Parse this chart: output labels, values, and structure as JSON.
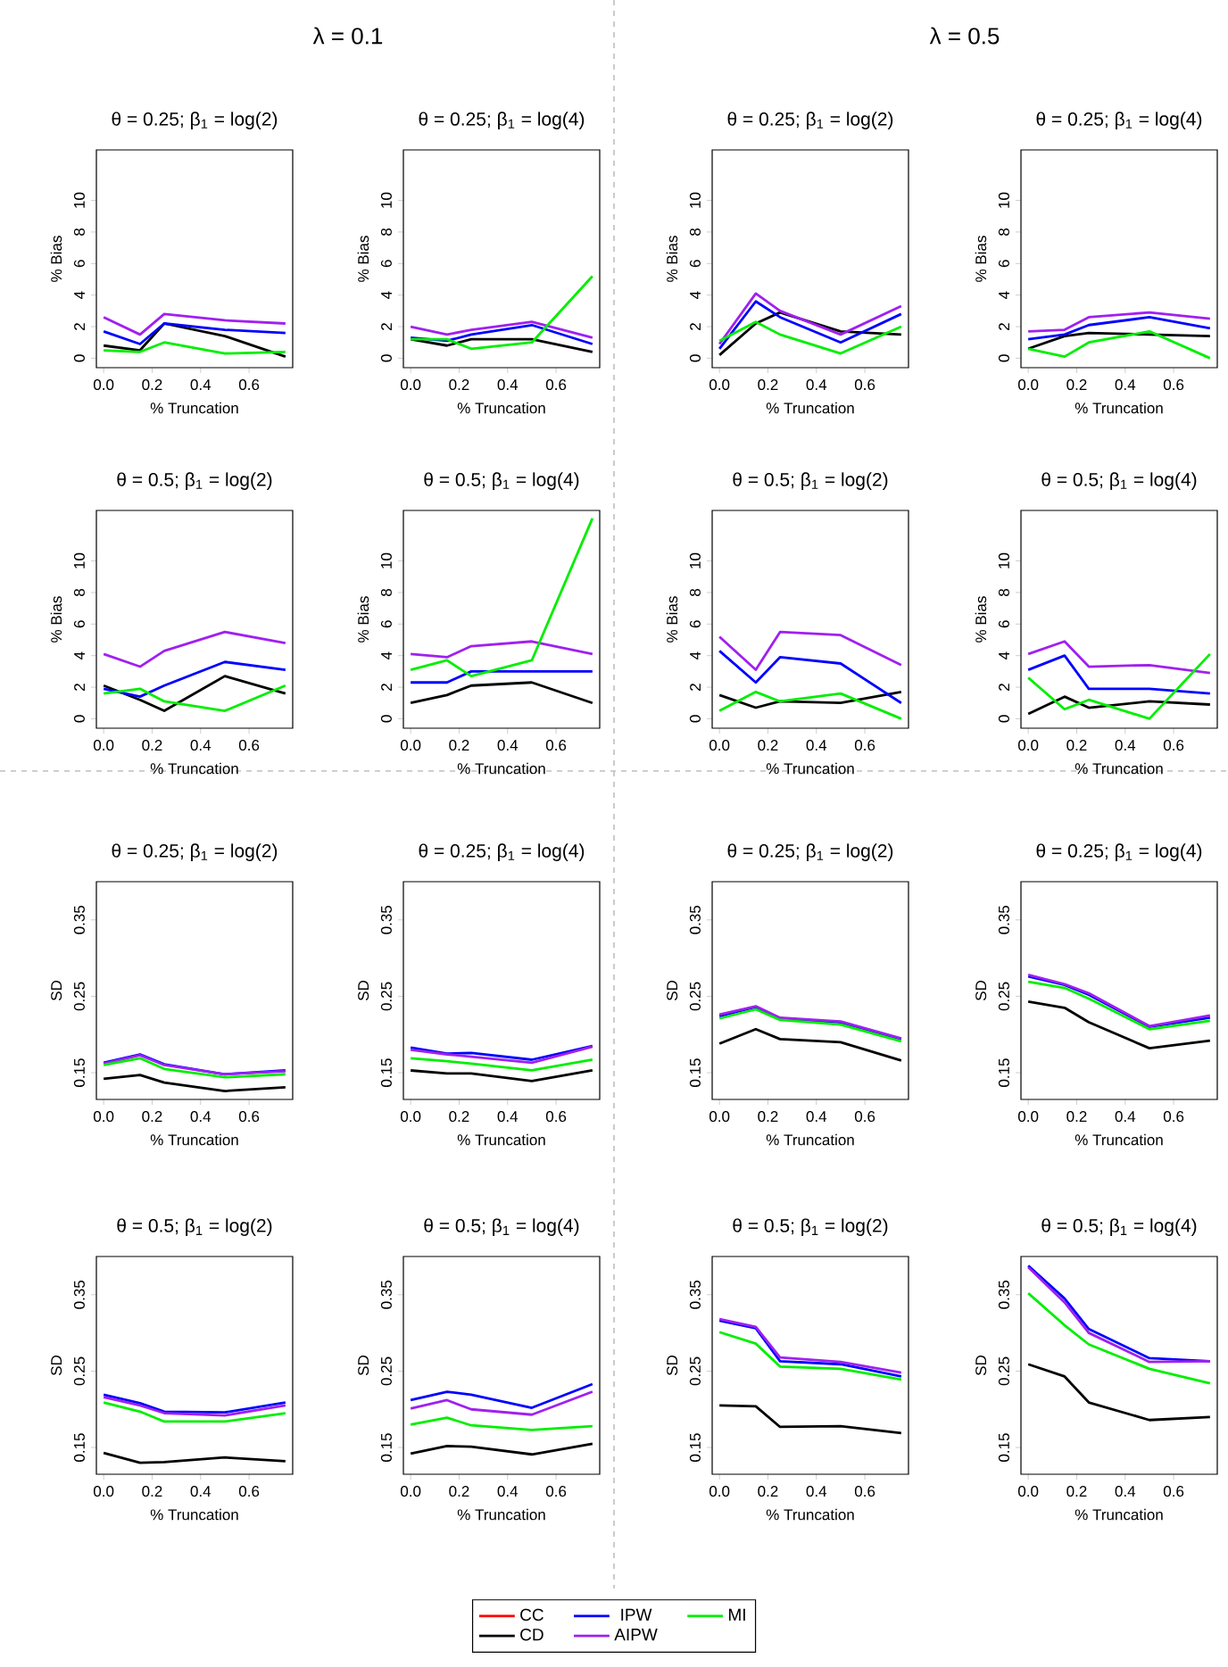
{
  "chart_data": [
    {
      "type": "line",
      "title": "θ = 0.25; β$_{1}$ = log(2)",
      "xlabel": "% Truncation",
      "ylabel": "% Bias",
      "annotations": [
        "λ = 0.1"
      ],
      "x": [
        0,
        0.15,
        0.25,
        0.5,
        0.75
      ],
      "xlim": [
        -0.03,
        0.78
      ],
      "ylim": [
        -0.6,
        13.2
      ],
      "xticks": [
        {
          "value": 0,
          "label": "0.0"
        },
        {
          "value": 0.2,
          "label": "0.2"
        },
        {
          "value": 0.4,
          "label": "0.4"
        },
        {
          "value": 0.6,
          "label": "0.6"
        }
      ],
      "yticks": [
        0,
        2,
        4,
        6,
        8,
        10
      ],
      "series": [
        {
          "color": "#000000",
          "values": [
            0.8,
            0.5,
            2.2,
            1.4,
            0.1
          ]
        },
        {
          "color": "#0000ff",
          "values": [
            1.7,
            0.9,
            2.2,
            1.8,
            1.6
          ]
        },
        {
          "color": "#a020f0",
          "values": [
            2.6,
            1.5,
            2.8,
            2.4,
            2.2
          ]
        },
        {
          "color": "#00ee00",
          "values": [
            0.5,
            0.4,
            1.0,
            0.3,
            0.4
          ]
        }
      ]
    },
    {
      "type": "line",
      "title": "θ = 0.25; β$_{1}$ = log(4)",
      "xlabel": "% Truncation",
      "ylabel": "% Bias",
      "x": [
        0,
        0.15,
        0.25,
        0.5,
        0.75
      ],
      "xlim": [
        -0.03,
        0.78
      ],
      "ylim": [
        -0.6,
        13.2
      ],
      "xticks": [
        {
          "value": 0,
          "label": "0.0"
        },
        {
          "value": 0.2,
          "label": "0.2"
        },
        {
          "value": 0.4,
          "label": "0.4"
        },
        {
          "value": 0.6,
          "label": "0.6"
        }
      ],
      "yticks": [
        0,
        2,
        4,
        6,
        8,
        10
      ],
      "series": [
        {
          "color": "#000000",
          "values": [
            1.2,
            0.8,
            1.2,
            1.2,
            0.4
          ]
        },
        {
          "color": "#0000ff",
          "values": [
            1.3,
            1.1,
            1.5,
            2.1,
            0.9
          ]
        },
        {
          "color": "#a020f0",
          "values": [
            2.0,
            1.5,
            1.8,
            2.3,
            1.3
          ]
        },
        {
          "color": "#00ee00",
          "values": [
            1.2,
            1.2,
            0.6,
            1.0,
            5.2
          ]
        }
      ]
    },
    {
      "type": "line",
      "title": "θ = 0.25; β$_{1}$ = log(2)",
      "xlabel": "% Truncation",
      "ylabel": "% Bias",
      "annotations": [
        "λ = 0.5"
      ],
      "x": [
        0,
        0.15,
        0.25,
        0.5,
        0.75
      ],
      "xlim": [
        -0.03,
        0.78
      ],
      "ylim": [
        -0.6,
        13.2
      ],
      "xticks": [
        {
          "value": 0,
          "label": "0.0"
        },
        {
          "value": 0.2,
          "label": "0.2"
        },
        {
          "value": 0.4,
          "label": "0.4"
        },
        {
          "value": 0.6,
          "label": "0.6"
        }
      ],
      "yticks": [
        0,
        2,
        4,
        6,
        8,
        10
      ],
      "series": [
        {
          "color": "#000000",
          "values": [
            0.2,
            2.2,
            2.9,
            1.7,
            1.5
          ]
        },
        {
          "color": "#0000ff",
          "values": [
            0.6,
            3.6,
            2.6,
            1.0,
            2.8
          ]
        },
        {
          "color": "#a020f0",
          "values": [
            0.9,
            4.1,
            3.0,
            1.5,
            3.3
          ]
        },
        {
          "color": "#00ee00",
          "values": [
            1.1,
            2.3,
            1.5,
            0.3,
            2.0
          ]
        }
      ]
    },
    {
      "type": "line",
      "title": "θ = 0.25; β$_{1}$ = log(4)",
      "xlabel": "% Truncation",
      "ylabel": "% Bias",
      "x": [
        0,
        0.15,
        0.25,
        0.5,
        0.75
      ],
      "xlim": [
        -0.03,
        0.78
      ],
      "ylim": [
        -0.6,
        13.2
      ],
      "xticks": [
        {
          "value": 0,
          "label": "0.0"
        },
        {
          "value": 0.2,
          "label": "0.2"
        },
        {
          "value": 0.4,
          "label": "0.4"
        },
        {
          "value": 0.6,
          "label": "0.6"
        }
      ],
      "yticks": [
        0,
        2,
        4,
        6,
        8,
        10
      ],
      "series": [
        {
          "color": "#000000",
          "values": [
            0.6,
            1.4,
            1.6,
            1.5,
            1.4
          ]
        },
        {
          "color": "#0000ff",
          "values": [
            1.2,
            1.5,
            2.1,
            2.6,
            1.9
          ]
        },
        {
          "color": "#a020f0",
          "values": [
            1.7,
            1.8,
            2.6,
            2.9,
            2.5
          ]
        },
        {
          "color": "#00ee00",
          "values": [
            0.6,
            0.1,
            1.0,
            1.7,
            0.0
          ]
        }
      ]
    },
    {
      "type": "line",
      "title": "θ = 0.5; β$_{1}$ = log(2)",
      "xlabel": "% Truncation",
      "ylabel": "% Bias",
      "x": [
        0,
        0.15,
        0.25,
        0.5,
        0.75
      ],
      "xlim": [
        -0.03,
        0.78
      ],
      "ylim": [
        -0.6,
        13.2
      ],
      "xticks": [
        {
          "value": 0,
          "label": "0.0"
        },
        {
          "value": 0.2,
          "label": "0.2"
        },
        {
          "value": 0.4,
          "label": "0.4"
        },
        {
          "value": 0.6,
          "label": "0.6"
        }
      ],
      "yticks": [
        0,
        2,
        4,
        6,
        8,
        10
      ],
      "series": [
        {
          "color": "#000000",
          "values": [
            2.1,
            1.2,
            0.5,
            2.7,
            1.6
          ]
        },
        {
          "color": "#0000ff",
          "values": [
            1.9,
            1.4,
            2.1,
            3.6,
            3.1
          ]
        },
        {
          "color": "#a020f0",
          "values": [
            4.1,
            3.3,
            4.3,
            5.5,
            4.8
          ]
        },
        {
          "color": "#00ee00",
          "values": [
            1.6,
            1.9,
            1.1,
            0.5,
            2.1
          ]
        }
      ]
    },
    {
      "type": "line",
      "title": "θ = 0.5; β$_{1}$ = log(4)",
      "xlabel": "% Truncation",
      "ylabel": "% Bias",
      "x": [
        0,
        0.15,
        0.25,
        0.5,
        0.75
      ],
      "xlim": [
        -0.03,
        0.78
      ],
      "ylim": [
        -0.6,
        13.2
      ],
      "xticks": [
        {
          "value": 0,
          "label": "0.0"
        },
        {
          "value": 0.2,
          "label": "0.2"
        },
        {
          "value": 0.4,
          "label": "0.4"
        },
        {
          "value": 0.6,
          "label": "0.6"
        }
      ],
      "yticks": [
        0,
        2,
        4,
        6,
        8,
        10
      ],
      "series": [
        {
          "color": "#000000",
          "values": [
            1.0,
            1.5,
            2.1,
            2.3,
            1.0
          ]
        },
        {
          "color": "#0000ff",
          "values": [
            2.3,
            2.3,
            3.0,
            3.0,
            3.0
          ]
        },
        {
          "color": "#a020f0",
          "values": [
            4.1,
            3.9,
            4.6,
            4.9,
            4.1
          ]
        },
        {
          "color": "#00ee00",
          "values": [
            3.1,
            3.7,
            2.7,
            3.7,
            12.7
          ]
        }
      ]
    },
    {
      "type": "line",
      "title": "θ = 0.5; β$_{1}$ = log(2)",
      "xlabel": "% Truncation",
      "ylabel": "% Bias",
      "x": [
        0,
        0.15,
        0.25,
        0.5,
        0.75
      ],
      "xlim": [
        -0.03,
        0.78
      ],
      "ylim": [
        -0.6,
        13.2
      ],
      "xticks": [
        {
          "value": 0,
          "label": "0.0"
        },
        {
          "value": 0.2,
          "label": "0.2"
        },
        {
          "value": 0.4,
          "label": "0.4"
        },
        {
          "value": 0.6,
          "label": "0.6"
        }
      ],
      "yticks": [
        0,
        2,
        4,
        6,
        8,
        10
      ],
      "series": [
        {
          "color": "#000000",
          "values": [
            1.5,
            0.7,
            1.1,
            1.0,
            1.7
          ]
        },
        {
          "color": "#0000ff",
          "values": [
            4.3,
            2.3,
            3.9,
            3.5,
            1.0
          ]
        },
        {
          "color": "#a020f0",
          "values": [
            5.2,
            3.1,
            5.5,
            5.3,
            3.4
          ]
        },
        {
          "color": "#00ee00",
          "values": [
            0.5,
            1.7,
            1.1,
            1.6,
            0.0
          ]
        }
      ]
    },
    {
      "type": "line",
      "title": "θ = 0.5; β$_{1}$ = log(4)",
      "xlabel": "% Truncation",
      "ylabel": "% Bias",
      "x": [
        0,
        0.15,
        0.25,
        0.5,
        0.75
      ],
      "xlim": [
        -0.03,
        0.78
      ],
      "ylim": [
        -0.6,
        13.2
      ],
      "xticks": [
        {
          "value": 0,
          "label": "0.0"
        },
        {
          "value": 0.2,
          "label": "0.2"
        },
        {
          "value": 0.4,
          "label": "0.4"
        },
        {
          "value": 0.6,
          "label": "0.6"
        }
      ],
      "yticks": [
        0,
        2,
        4,
        6,
        8,
        10
      ],
      "series": [
        {
          "color": "#000000",
          "values": [
            0.3,
            1.4,
            0.7,
            1.1,
            0.9
          ]
        },
        {
          "color": "#0000ff",
          "values": [
            3.1,
            4.0,
            1.9,
            1.9,
            1.6
          ]
        },
        {
          "color": "#a020f0",
          "values": [
            4.1,
            4.9,
            3.3,
            3.4,
            2.9
          ]
        },
        {
          "color": "#00ee00",
          "values": [
            2.6,
            0.6,
            1.2,
            0.0,
            4.1
          ]
        }
      ]
    },
    {
      "type": "line",
      "title": "θ = 0.25; β$_{1}$ = log(2)",
      "xlabel": "% Truncation",
      "ylabel": "SD",
      "x": [
        0,
        0.15,
        0.25,
        0.5,
        0.75
      ],
      "xlim": [
        -0.03,
        0.78
      ],
      "ylim": [
        0.115,
        0.4
      ],
      "xticks": [
        {
          "value": 0,
          "label": "0.0"
        },
        {
          "value": 0.2,
          "label": "0.2"
        },
        {
          "value": 0.4,
          "label": "0.4"
        },
        {
          "value": 0.6,
          "label": "0.6"
        }
      ],
      "yticks": [
        0.15,
        0.25,
        0.35
      ],
      "series": [
        {
          "color": "#000000",
          "values": [
            0.142,
            0.147,
            0.137,
            0.126,
            0.131
          ]
        },
        {
          "color": "#0000ff",
          "values": [
            0.163,
            0.174,
            0.161,
            0.148,
            0.153
          ]
        },
        {
          "color": "#a020f0",
          "values": [
            0.162,
            0.173,
            0.16,
            0.148,
            0.152
          ]
        },
        {
          "color": "#00ee00",
          "values": [
            0.16,
            0.169,
            0.155,
            0.144,
            0.148
          ]
        }
      ]
    },
    {
      "type": "line",
      "title": "θ = 0.25; β$_{1}$ = log(4)",
      "xlabel": "% Truncation",
      "ylabel": "SD",
      "x": [
        0,
        0.15,
        0.25,
        0.5,
        0.75
      ],
      "xlim": [
        -0.03,
        0.78
      ],
      "ylim": [
        0.115,
        0.4
      ],
      "xticks": [
        {
          "value": 0,
          "label": "0.0"
        },
        {
          "value": 0.2,
          "label": "0.2"
        },
        {
          "value": 0.4,
          "label": "0.4"
        },
        {
          "value": 0.6,
          "label": "0.6"
        }
      ],
      "yticks": [
        0.15,
        0.25,
        0.35
      ],
      "series": [
        {
          "color": "#000000",
          "values": [
            0.153,
            0.149,
            0.149,
            0.139,
            0.153
          ]
        },
        {
          "color": "#0000ff",
          "values": [
            0.183,
            0.175,
            0.176,
            0.167,
            0.185
          ]
        },
        {
          "color": "#a020f0",
          "values": [
            0.18,
            0.174,
            0.171,
            0.163,
            0.184
          ]
        },
        {
          "color": "#00ee00",
          "values": [
            0.169,
            0.165,
            0.162,
            0.153,
            0.167
          ]
        }
      ]
    },
    {
      "type": "line",
      "title": "θ = 0.25; β$_{1}$ = log(2)",
      "xlabel": "% Truncation",
      "ylabel": "SD",
      "x": [
        0,
        0.15,
        0.25,
        0.5,
        0.75
      ],
      "xlim": [
        -0.03,
        0.78
      ],
      "ylim": [
        0.115,
        0.4
      ],
      "xticks": [
        {
          "value": 0,
          "label": "0.0"
        },
        {
          "value": 0.2,
          "label": "0.2"
        },
        {
          "value": 0.4,
          "label": "0.4"
        },
        {
          "value": 0.6,
          "label": "0.6"
        }
      ],
      "yticks": [
        0.15,
        0.25,
        0.35
      ],
      "series": [
        {
          "color": "#000000",
          "values": [
            0.188,
            0.207,
            0.194,
            0.19,
            0.166
          ]
        },
        {
          "color": "#0000ff",
          "values": [
            0.224,
            0.236,
            0.221,
            0.216,
            0.194
          ]
        },
        {
          "color": "#a020f0",
          "values": [
            0.226,
            0.237,
            0.222,
            0.217,
            0.195
          ]
        },
        {
          "color": "#00ee00",
          "values": [
            0.221,
            0.233,
            0.219,
            0.213,
            0.191
          ]
        }
      ]
    },
    {
      "type": "line",
      "title": "θ = 0.25; β$_{1}$ = log(4)",
      "xlabel": "% Truncation",
      "ylabel": "SD",
      "x": [
        0,
        0.15,
        0.25,
        0.5,
        0.75
      ],
      "xlim": [
        -0.03,
        0.78
      ],
      "ylim": [
        0.115,
        0.4
      ],
      "xticks": [
        {
          "value": 0,
          "label": "0.0"
        },
        {
          "value": 0.2,
          "label": "0.2"
        },
        {
          "value": 0.4,
          "label": "0.4"
        },
        {
          "value": 0.6,
          "label": "0.6"
        }
      ],
      "yticks": [
        0.15,
        0.25,
        0.35
      ],
      "series": [
        {
          "color": "#000000",
          "values": [
            0.243,
            0.235,
            0.216,
            0.182,
            0.192
          ]
        },
        {
          "color": "#0000ff",
          "values": [
            0.276,
            0.265,
            0.252,
            0.21,
            0.222
          ]
        },
        {
          "color": "#a020f0",
          "values": [
            0.278,
            0.266,
            0.254,
            0.211,
            0.225
          ]
        },
        {
          "color": "#00ee00",
          "values": [
            0.269,
            0.261,
            0.247,
            0.207,
            0.218
          ]
        }
      ]
    },
    {
      "type": "line",
      "title": "θ = 0.5; β$_{1}$ = log(2)",
      "xlabel": "% Truncation",
      "ylabel": "SD",
      "x": [
        0,
        0.15,
        0.25,
        0.5,
        0.75
      ],
      "xlim": [
        -0.03,
        0.78
      ],
      "ylim": [
        0.115,
        0.4
      ],
      "xticks": [
        {
          "value": 0,
          "label": "0.0"
        },
        {
          "value": 0.2,
          "label": "0.2"
        },
        {
          "value": 0.4,
          "label": "0.4"
        },
        {
          "value": 0.6,
          "label": "0.6"
        }
      ],
      "yticks": [
        0.15,
        0.25,
        0.35
      ],
      "series": [
        {
          "color": "#000000",
          "values": [
            0.143,
            0.13,
            0.131,
            0.137,
            0.132
          ]
        },
        {
          "color": "#0000ff",
          "values": [
            0.219,
            0.208,
            0.197,
            0.196,
            0.209
          ]
        },
        {
          "color": "#a020f0",
          "values": [
            0.216,
            0.205,
            0.195,
            0.192,
            0.205
          ]
        },
        {
          "color": "#00ee00",
          "values": [
            0.209,
            0.197,
            0.184,
            0.184,
            0.195
          ]
        }
      ]
    },
    {
      "type": "line",
      "title": "θ = 0.5; β$_{1}$ = log(4)",
      "xlabel": "% Truncation",
      "ylabel": "SD",
      "x": [
        0,
        0.15,
        0.25,
        0.5,
        0.75
      ],
      "xlim": [
        -0.03,
        0.78
      ],
      "ylim": [
        0.115,
        0.4
      ],
      "xticks": [
        {
          "value": 0,
          "label": "0.0"
        },
        {
          "value": 0.2,
          "label": "0.2"
        },
        {
          "value": 0.4,
          "label": "0.4"
        },
        {
          "value": 0.6,
          "label": "0.6"
        }
      ],
      "yticks": [
        0.15,
        0.25,
        0.35
      ],
      "series": [
        {
          "color": "#000000",
          "values": [
            0.142,
            0.152,
            0.151,
            0.141,
            0.155
          ]
        },
        {
          "color": "#0000ff",
          "values": [
            0.212,
            0.223,
            0.219,
            0.202,
            0.233
          ]
        },
        {
          "color": "#a020f0",
          "values": [
            0.201,
            0.212,
            0.2,
            0.193,
            0.223
          ]
        },
        {
          "color": "#00ee00",
          "values": [
            0.18,
            0.189,
            0.179,
            0.173,
            0.178
          ]
        }
      ]
    },
    {
      "type": "line",
      "title": "θ = 0.5; β$_{1}$ = log(2)",
      "xlabel": "% Truncation",
      "ylabel": "SD",
      "x": [
        0,
        0.15,
        0.25,
        0.5,
        0.75
      ],
      "xlim": [
        -0.03,
        0.78
      ],
      "ylim": [
        0.115,
        0.4
      ],
      "xticks": [
        {
          "value": 0,
          "label": "0.0"
        },
        {
          "value": 0.2,
          "label": "0.2"
        },
        {
          "value": 0.4,
          "label": "0.4"
        },
        {
          "value": 0.6,
          "label": "0.6"
        }
      ],
      "yticks": [
        0.15,
        0.25,
        0.35
      ],
      "series": [
        {
          "color": "#000000",
          "values": [
            0.205,
            0.204,
            0.177,
            0.178,
            0.169
          ]
        },
        {
          "color": "#0000ff",
          "values": [
            0.316,
            0.306,
            0.263,
            0.259,
            0.243
          ]
        },
        {
          "color": "#a020f0",
          "values": [
            0.318,
            0.308,
            0.268,
            0.262,
            0.248
          ]
        },
        {
          "color": "#00ee00",
          "values": [
            0.301,
            0.286,
            0.256,
            0.253,
            0.239
          ]
        }
      ]
    },
    {
      "type": "line",
      "title": "θ = 0.5; β$_{1}$ = log(4)",
      "xlabel": "% Truncation",
      "ylabel": "SD",
      "legend": "bottom",
      "x": [
        0,
        0.15,
        0.25,
        0.5,
        0.75
      ],
      "xlim": [
        -0.03,
        0.78
      ],
      "ylim": [
        0.115,
        0.4
      ],
      "xticks": [
        {
          "value": 0,
          "label": "0.0"
        },
        {
          "value": 0.2,
          "label": "0.2"
        },
        {
          "value": 0.4,
          "label": "0.4"
        },
        {
          "value": 0.6,
          "label": "0.6"
        }
      ],
      "yticks": [
        0.15,
        0.25,
        0.35
      ],
      "series": [
        {
          "name": "CC",
          "color": "#ff0000",
          "values": [
            null,
            null,
            null,
            null,
            null
          ]
        },
        {
          "name": "CD",
          "color": "#000000",
          "values": [
            0.259,
            0.243,
            0.209,
            0.186,
            0.19
          ]
        },
        {
          "name": "IPW",
          "color": "#0000ff",
          "values": [
            0.388,
            0.345,
            0.305,
            0.267,
            0.263
          ]
        },
        {
          "name": "AIPW",
          "color": "#a020f0",
          "values": [
            0.386,
            0.34,
            0.3,
            0.262,
            0.263
          ]
        },
        {
          "name": "MI",
          "color": "#00ee00",
          "values": [
            0.352,
            0.31,
            0.285,
            0.253,
            0.234
          ]
        }
      ]
    }
  ]
}
